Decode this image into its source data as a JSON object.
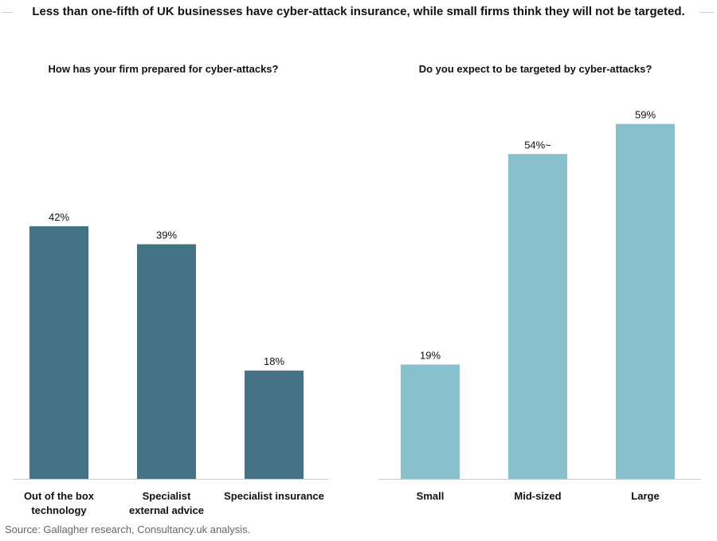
{
  "title": "Less than one-fifth of UK businesses have cyber-attack insurance, while small firms think they will not be targeted.",
  "source": "Source:  Gallagher research, Consultancy.uk analysis.",
  "colors": {
    "left": "#467285",
    "right": "#88c0cb",
    "axis": "#c8c8c8"
  },
  "chart_data": [
    {
      "type": "bar",
      "title": "How has your firm prepared for cyber-attacks?",
      "categories": [
        [
          "Out of the box",
          "technology"
        ],
        [
          "Specialist",
          "external advice"
        ],
        [
          "Specialist insurance"
        ]
      ],
      "values": [
        42,
        39,
        18
      ],
      "labels": [
        "42%",
        "39%",
        "18%"
      ],
      "ylim": [
        0,
        70
      ]
    },
    {
      "type": "bar",
      "title": "Do you expect to be targeted by cyber-attacks?",
      "categories": [
        [
          "Small"
        ],
        [
          "Mid-sized"
        ],
        [
          "Large"
        ]
      ],
      "values": [
        19,
        54,
        59
      ],
      "labels": [
        "19%",
        "54%~",
        "59%"
      ],
      "ylim": [
        0,
        70
      ]
    }
  ]
}
